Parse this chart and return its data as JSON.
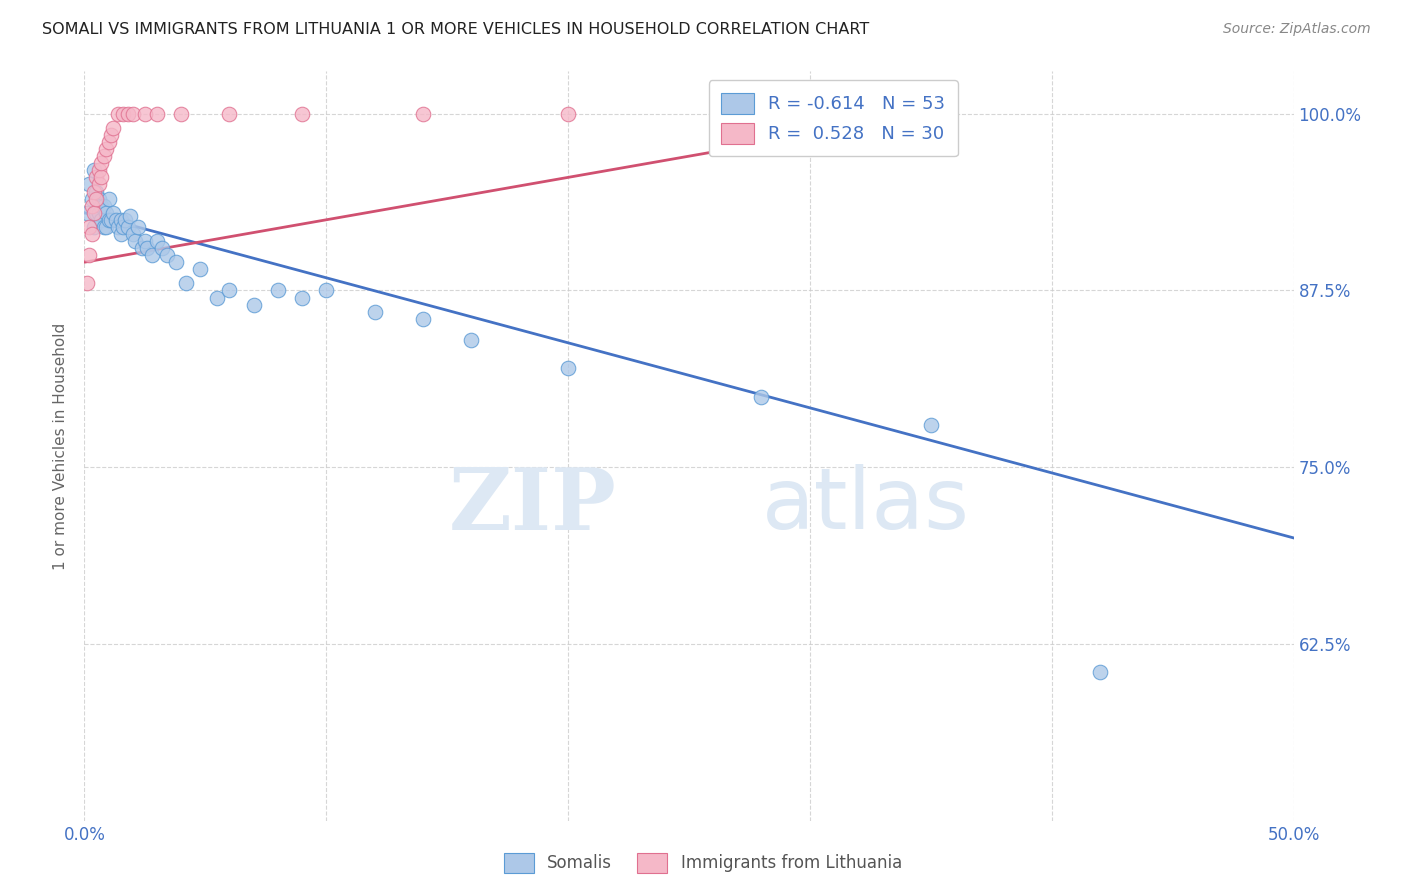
{
  "title": "SOMALI VS IMMIGRANTS FROM LITHUANIA 1 OR MORE VEHICLES IN HOUSEHOLD CORRELATION CHART",
  "source": "Source: ZipAtlas.com",
  "ylabel": "1 or more Vehicles in Household",
  "x_min": 0.0,
  "x_max": 0.5,
  "y_min": 0.5,
  "y_max": 1.03,
  "y_ticks": [
    0.625,
    0.75,
    0.875,
    1.0
  ],
  "y_tick_labels": [
    "62.5%",
    "75.0%",
    "87.5%",
    "100.0%"
  ],
  "watermark_zip": "ZIP",
  "watermark_atlas": "atlas",
  "legend_label1": "Somalis",
  "legend_label2": "Immigrants from Lithuania",
  "R_blue": -0.614,
  "N_blue": 53,
  "R_pink": 0.528,
  "N_pink": 30,
  "blue_fill": "#adc8e8",
  "pink_fill": "#f5b8c8",
  "blue_edge": "#5b9bd5",
  "pink_edge": "#e07090",
  "blue_line": "#4472c4",
  "pink_line": "#d05070",
  "somali_x": [
    0.001,
    0.002,
    0.003,
    0.004,
    0.004,
    0.005,
    0.005,
    0.006,
    0.006,
    0.007,
    0.007,
    0.008,
    0.008,
    0.009,
    0.009,
    0.01,
    0.01,
    0.011,
    0.012,
    0.013,
    0.014,
    0.015,
    0.015,
    0.016,
    0.017,
    0.018,
    0.019,
    0.02,
    0.021,
    0.022,
    0.024,
    0.025,
    0.026,
    0.028,
    0.03,
    0.032,
    0.034,
    0.038,
    0.042,
    0.048,
    0.055,
    0.06,
    0.07,
    0.08,
    0.09,
    0.1,
    0.12,
    0.14,
    0.16,
    0.2,
    0.28,
    0.35,
    0.42
  ],
  "somali_y": [
    0.93,
    0.95,
    0.94,
    0.96,
    0.92,
    0.945,
    0.93,
    0.94,
    0.93,
    0.935,
    0.925,
    0.935,
    0.92,
    0.93,
    0.92,
    0.94,
    0.925,
    0.925,
    0.93,
    0.925,
    0.92,
    0.925,
    0.915,
    0.92,
    0.925,
    0.92,
    0.928,
    0.915,
    0.91,
    0.92,
    0.905,
    0.91,
    0.905,
    0.9,
    0.91,
    0.905,
    0.9,
    0.895,
    0.88,
    0.89,
    0.87,
    0.875,
    0.865,
    0.875,
    0.87,
    0.875,
    0.86,
    0.855,
    0.84,
    0.82,
    0.8,
    0.78,
    0.605
  ],
  "lithuania_x": [
    0.001,
    0.002,
    0.002,
    0.003,
    0.003,
    0.004,
    0.004,
    0.005,
    0.005,
    0.006,
    0.006,
    0.007,
    0.007,
    0.008,
    0.009,
    0.01,
    0.011,
    0.012,
    0.014,
    0.016,
    0.018,
    0.02,
    0.025,
    0.03,
    0.04,
    0.06,
    0.09,
    0.14,
    0.2,
    0.32
  ],
  "lithuania_y": [
    0.88,
    0.9,
    0.92,
    0.915,
    0.935,
    0.93,
    0.945,
    0.94,
    0.955,
    0.95,
    0.96,
    0.955,
    0.965,
    0.97,
    0.975,
    0.98,
    0.985,
    0.99,
    1.0,
    1.0,
    1.0,
    1.0,
    1.0,
    1.0,
    1.0,
    1.0,
    1.0,
    1.0,
    1.0,
    1.0
  ],
  "blue_trendline_x0": 0.0,
  "blue_trendline_y0": 0.93,
  "blue_trendline_x1": 0.5,
  "blue_trendline_y1": 0.7,
  "pink_trendline_x0": 0.0,
  "pink_trendline_y0": 0.895,
  "pink_trendline_x1": 0.35,
  "pink_trendline_y1": 1.0
}
